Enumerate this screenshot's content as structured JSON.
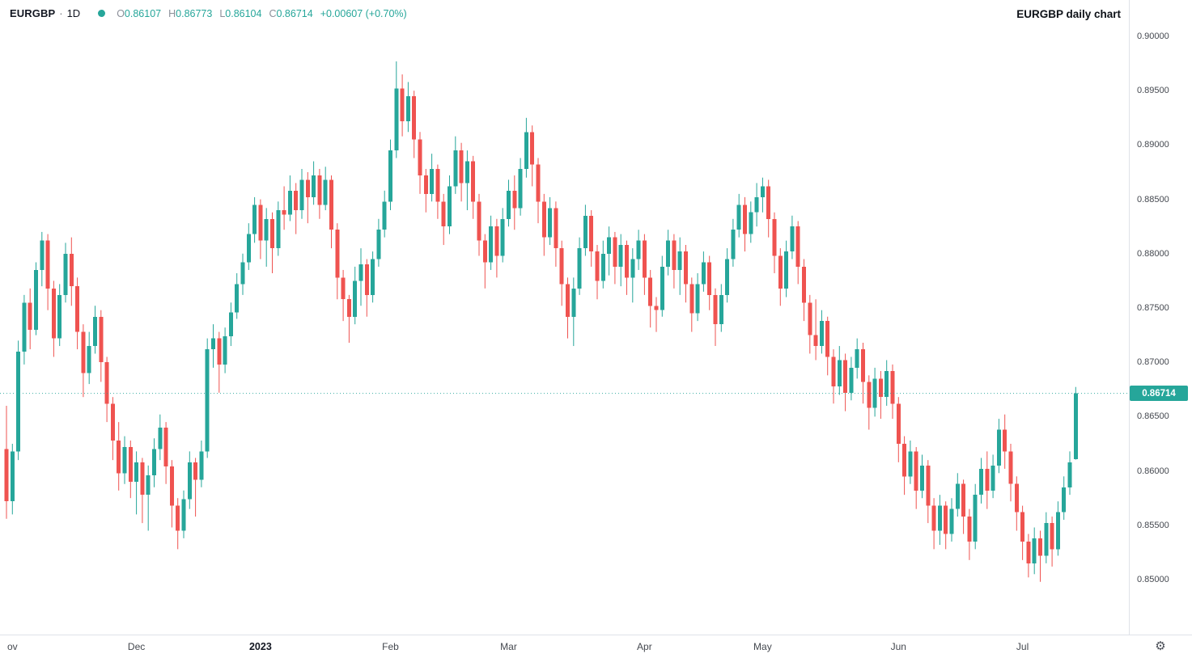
{
  "legend": {
    "symbol": "EURGBP",
    "separator": "·",
    "interval": "1D",
    "ohlc": {
      "open_label": "O",
      "open_value": "0.86107",
      "high_label": "H",
      "high_value": "0.86773",
      "low_label": "L",
      "low_value": "0.86104",
      "close_label": "C",
      "close_value": "0.86714",
      "change_value": "+0.00607 (+0.70%)"
    }
  },
  "annotation": {
    "title": "EURGBP daily chart"
  },
  "price_scale": {
    "labels": [
      "0.90000",
      "0.89500",
      "0.89000",
      "0.88500",
      "0.88000",
      "0.87500",
      "0.87000",
      "0.86500",
      "0.86000",
      "0.85500",
      "0.85000"
    ],
    "last_price": "0.86714"
  },
  "time_scale": {
    "ticks": [
      {
        "label": "ov",
        "index": 1
      },
      {
        "label": "Dec",
        "index": 22
      },
      {
        "label": "2023",
        "index": 43,
        "bold": true
      },
      {
        "label": "Feb",
        "index": 65
      },
      {
        "label": "Mar",
        "index": 85
      },
      {
        "label": "Apr",
        "index": 108
      },
      {
        "label": "May",
        "index": 128
      },
      {
        "label": "Jun",
        "index": 151
      },
      {
        "label": "Jul",
        "index": 172
      }
    ]
  },
  "colors": {
    "up": "#26a69a",
    "down": "#ef5350",
    "text": "#131722",
    "muted": "#787b86",
    "axis_line": "#dfe2e8",
    "badge_text": "#ffffff"
  },
  "icons": {
    "settings": "⚙"
  },
  "chart_data": {
    "type": "candlestick",
    "symbol": "EURGBP",
    "interval": "1D",
    "title": "EURGBP daily chart",
    "grid": false,
    "y_axis": {
      "min": 0.85,
      "max": 0.9,
      "tick_step": 0.005,
      "side": "right"
    },
    "x_axis": {
      "ticks": [
        "Nov",
        "Dec",
        "2023",
        "Feb",
        "Mar",
        "Apr",
        "May",
        "Jun",
        "Jul"
      ]
    },
    "last_price": 0.86714,
    "last_ohlc": {
      "open": 0.86107,
      "high": 0.86773,
      "low": 0.86104,
      "close": 0.86714,
      "change": 0.00607,
      "change_pct": 0.7
    },
    "candles": [
      [
        0.862,
        0.866,
        0.8556,
        0.8572
      ],
      [
        0.8572,
        0.8625,
        0.856,
        0.8618
      ],
      [
        0.8618,
        0.872,
        0.861,
        0.871
      ],
      [
        0.871,
        0.8762,
        0.8698,
        0.8755
      ],
      [
        0.8755,
        0.8768,
        0.8712,
        0.873
      ],
      [
        0.873,
        0.8792,
        0.8725,
        0.8785
      ],
      [
        0.8785,
        0.882,
        0.877,
        0.8812
      ],
      [
        0.8812,
        0.8818,
        0.8748,
        0.8768
      ],
      [
        0.8768,
        0.8775,
        0.8705,
        0.8722
      ],
      [
        0.8722,
        0.8772,
        0.8715,
        0.8762
      ],
      [
        0.8762,
        0.881,
        0.8755,
        0.88
      ],
      [
        0.88,
        0.8815,
        0.8752,
        0.877
      ],
      [
        0.877,
        0.8778,
        0.8712,
        0.8728
      ],
      [
        0.8728,
        0.8735,
        0.8668,
        0.869
      ],
      [
        0.869,
        0.8728,
        0.868,
        0.8715
      ],
      [
        0.8715,
        0.8752,
        0.8708,
        0.8742
      ],
      [
        0.8742,
        0.8748,
        0.8682,
        0.87
      ],
      [
        0.87,
        0.8705,
        0.8645,
        0.8662
      ],
      [
        0.8662,
        0.8668,
        0.861,
        0.8628
      ],
      [
        0.8628,
        0.8645,
        0.8582,
        0.8598
      ],
      [
        0.8598,
        0.8632,
        0.8588,
        0.8622
      ],
      [
        0.8622,
        0.8628,
        0.8575,
        0.859
      ],
      [
        0.859,
        0.8618,
        0.856,
        0.8608
      ],
      [
        0.8608,
        0.8612,
        0.8552,
        0.8578
      ],
      [
        0.8578,
        0.8605,
        0.8545,
        0.8596
      ],
      [
        0.8596,
        0.863,
        0.8585,
        0.862
      ],
      [
        0.862,
        0.8652,
        0.861,
        0.864
      ],
      [
        0.864,
        0.8645,
        0.8588,
        0.8604
      ],
      [
        0.8604,
        0.861,
        0.8548,
        0.8568
      ],
      [
        0.8568,
        0.8575,
        0.8528,
        0.8545
      ],
      [
        0.8545,
        0.8582,
        0.8538,
        0.8574
      ],
      [
        0.8574,
        0.8618,
        0.8565,
        0.8608
      ],
      [
        0.8608,
        0.8612,
        0.8558,
        0.8592
      ],
      [
        0.8592,
        0.8628,
        0.8585,
        0.8618
      ],
      [
        0.8618,
        0.8722,
        0.8612,
        0.8712
      ],
      [
        0.8712,
        0.8735,
        0.8695,
        0.8722
      ],
      [
        0.8722,
        0.8728,
        0.8672,
        0.8698
      ],
      [
        0.8698,
        0.8732,
        0.869,
        0.8724
      ],
      [
        0.8724,
        0.8755,
        0.8715,
        0.8746
      ],
      [
        0.8746,
        0.8782,
        0.874,
        0.8772
      ],
      [
        0.8772,
        0.88,
        0.8762,
        0.8792
      ],
      [
        0.8792,
        0.8828,
        0.8785,
        0.8818
      ],
      [
        0.8818,
        0.8852,
        0.881,
        0.8845
      ],
      [
        0.8845,
        0.885,
        0.8795,
        0.8812
      ],
      [
        0.8812,
        0.8842,
        0.8788,
        0.8832
      ],
      [
        0.8832,
        0.8838,
        0.8782,
        0.8805
      ],
      [
        0.8805,
        0.8848,
        0.8798,
        0.884
      ],
      [
        0.884,
        0.8862,
        0.8822,
        0.8836
      ],
      [
        0.8836,
        0.8872,
        0.883,
        0.8858
      ],
      [
        0.8858,
        0.8865,
        0.8818,
        0.884
      ],
      [
        0.884,
        0.8878,
        0.8832,
        0.8868
      ],
      [
        0.8868,
        0.8875,
        0.8828,
        0.8852
      ],
      [
        0.8852,
        0.8885,
        0.8845,
        0.8872
      ],
      [
        0.8872,
        0.8878,
        0.8832,
        0.8845
      ],
      [
        0.8845,
        0.888,
        0.884,
        0.8868
      ],
      [
        0.8868,
        0.8872,
        0.8805,
        0.8822
      ],
      [
        0.8822,
        0.8828,
        0.8758,
        0.8778
      ],
      [
        0.8778,
        0.8785,
        0.8738,
        0.8758
      ],
      [
        0.8758,
        0.8762,
        0.8718,
        0.8742
      ],
      [
        0.8742,
        0.8788,
        0.8735,
        0.8775
      ],
      [
        0.8775,
        0.8805,
        0.8752,
        0.879
      ],
      [
        0.879,
        0.8795,
        0.8742,
        0.8762
      ],
      [
        0.8762,
        0.8802,
        0.8755,
        0.8795
      ],
      [
        0.8795,
        0.8832,
        0.8788,
        0.8822
      ],
      [
        0.8822,
        0.8858,
        0.8815,
        0.8848
      ],
      [
        0.8848,
        0.8905,
        0.884,
        0.8895
      ],
      [
        0.8895,
        0.8977,
        0.8888,
        0.8952
      ],
      [
        0.8952,
        0.8965,
        0.8908,
        0.8922
      ],
      [
        0.8922,
        0.8958,
        0.8912,
        0.8945
      ],
      [
        0.8945,
        0.895,
        0.8888,
        0.8905
      ],
      [
        0.8905,
        0.8912,
        0.8855,
        0.8872
      ],
      [
        0.8872,
        0.8878,
        0.8838,
        0.8855
      ],
      [
        0.8855,
        0.8892,
        0.8848,
        0.8878
      ],
      [
        0.8878,
        0.8882,
        0.8832,
        0.8848
      ],
      [
        0.8848,
        0.8855,
        0.8808,
        0.8825
      ],
      [
        0.8825,
        0.8872,
        0.8818,
        0.8862
      ],
      [
        0.8862,
        0.8908,
        0.8855,
        0.8895
      ],
      [
        0.8895,
        0.8902,
        0.8848,
        0.8865
      ],
      [
        0.8865,
        0.8895,
        0.884,
        0.8885
      ],
      [
        0.8885,
        0.889,
        0.8832,
        0.8848
      ],
      [
        0.8848,
        0.8855,
        0.8798,
        0.8812
      ],
      [
        0.8812,
        0.8818,
        0.8768,
        0.8792
      ],
      [
        0.8792,
        0.8835,
        0.8785,
        0.8825
      ],
      [
        0.8825,
        0.8832,
        0.8778,
        0.8798
      ],
      [
        0.8798,
        0.8842,
        0.8792,
        0.8832
      ],
      [
        0.8832,
        0.8868,
        0.8825,
        0.8858
      ],
      [
        0.8858,
        0.8872,
        0.8822,
        0.8842
      ],
      [
        0.8842,
        0.8888,
        0.8835,
        0.8878
      ],
      [
        0.8878,
        0.8925,
        0.887,
        0.8912
      ],
      [
        0.8912,
        0.8918,
        0.8862,
        0.8882
      ],
      [
        0.8882,
        0.8888,
        0.8828,
        0.8848
      ],
      [
        0.8848,
        0.8855,
        0.8798,
        0.8815
      ],
      [
        0.8815,
        0.8852,
        0.8808,
        0.8842
      ],
      [
        0.8842,
        0.8848,
        0.8788,
        0.8805
      ],
      [
        0.8805,
        0.8812,
        0.8752,
        0.8772
      ],
      [
        0.8772,
        0.8778,
        0.8722,
        0.8742
      ],
      [
        0.8742,
        0.8778,
        0.8715,
        0.8768
      ],
      [
        0.8768,
        0.8815,
        0.8762,
        0.8805
      ],
      [
        0.8805,
        0.8845,
        0.8798,
        0.8835
      ],
      [
        0.8835,
        0.884,
        0.8788,
        0.8802
      ],
      [
        0.8802,
        0.8808,
        0.8758,
        0.8775
      ],
      [
        0.8775,
        0.8812,
        0.8768,
        0.88
      ],
      [
        0.88,
        0.8825,
        0.878,
        0.8815
      ],
      [
        0.8815,
        0.882,
        0.8772,
        0.8788
      ],
      [
        0.8788,
        0.8818,
        0.877,
        0.8808
      ],
      [
        0.8808,
        0.8812,
        0.8762,
        0.8778
      ],
      [
        0.8778,
        0.8805,
        0.8755,
        0.8795
      ],
      [
        0.8795,
        0.8822,
        0.8785,
        0.8812
      ],
      [
        0.8812,
        0.8818,
        0.8762,
        0.8778
      ],
      [
        0.8778,
        0.8785,
        0.8732,
        0.8752
      ],
      [
        0.8752,
        0.876,
        0.8728,
        0.8748
      ],
      [
        0.8748,
        0.8798,
        0.8742,
        0.8788
      ],
      [
        0.8788,
        0.8822,
        0.878,
        0.8812
      ],
      [
        0.8812,
        0.8818,
        0.8768,
        0.8785
      ],
      [
        0.8785,
        0.8815,
        0.8762,
        0.8802
      ],
      [
        0.8802,
        0.8808,
        0.8755,
        0.8772
      ],
      [
        0.8772,
        0.8778,
        0.8728,
        0.8745
      ],
      [
        0.8745,
        0.8782,
        0.8738,
        0.8772
      ],
      [
        0.8772,
        0.8802,
        0.8765,
        0.8792
      ],
      [
        0.8792,
        0.8798,
        0.8748,
        0.8762
      ],
      [
        0.8762,
        0.8768,
        0.8715,
        0.8735
      ],
      [
        0.8735,
        0.8772,
        0.8728,
        0.8762
      ],
      [
        0.8762,
        0.8805,
        0.8755,
        0.8795
      ],
      [
        0.8795,
        0.8832,
        0.8788,
        0.8822
      ],
      [
        0.8822,
        0.8855,
        0.8815,
        0.8845
      ],
      [
        0.8845,
        0.8852,
        0.8802,
        0.8818
      ],
      [
        0.8818,
        0.8848,
        0.881,
        0.8838
      ],
      [
        0.8838,
        0.8865,
        0.8825,
        0.8852
      ],
      [
        0.8852,
        0.887,
        0.8838,
        0.8862
      ],
      [
        0.8862,
        0.8868,
        0.8815,
        0.8832
      ],
      [
        0.8832,
        0.8838,
        0.8782,
        0.8798
      ],
      [
        0.8798,
        0.8805,
        0.8752,
        0.8768
      ],
      [
        0.8768,
        0.8812,
        0.876,
        0.8802
      ],
      [
        0.8802,
        0.8835,
        0.8795,
        0.8825
      ],
      [
        0.8825,
        0.883,
        0.8772,
        0.8788
      ],
      [
        0.8788,
        0.8795,
        0.8738,
        0.8755
      ],
      [
        0.8755,
        0.8762,
        0.8708,
        0.8725
      ],
      [
        0.8725,
        0.8758,
        0.8702,
        0.8715
      ],
      [
        0.8715,
        0.8748,
        0.8708,
        0.8738
      ],
      [
        0.8738,
        0.8742,
        0.8688,
        0.8705
      ],
      [
        0.8705,
        0.8712,
        0.8662,
        0.8678
      ],
      [
        0.8678,
        0.8715,
        0.867,
        0.8702
      ],
      [
        0.8702,
        0.8708,
        0.8655,
        0.8672
      ],
      [
        0.8672,
        0.8705,
        0.8665,
        0.8695
      ],
      [
        0.8695,
        0.8722,
        0.8685,
        0.8712
      ],
      [
        0.8712,
        0.8718,
        0.8662,
        0.8682
      ],
      [
        0.8682,
        0.8688,
        0.8638,
        0.8658
      ],
      [
        0.8658,
        0.8695,
        0.865,
        0.8685
      ],
      [
        0.8685,
        0.8692,
        0.8648,
        0.8668
      ],
      [
        0.8668,
        0.8702,
        0.866,
        0.8692
      ],
      [
        0.8692,
        0.8698,
        0.8648,
        0.8662
      ],
      [
        0.8662,
        0.8668,
        0.8608,
        0.8625
      ],
      [
        0.8625,
        0.8632,
        0.8578,
        0.8595
      ],
      [
        0.8595,
        0.8628,
        0.8588,
        0.8618
      ],
      [
        0.8618,
        0.8622,
        0.8565,
        0.8582
      ],
      [
        0.8582,
        0.8615,
        0.8575,
        0.8605
      ],
      [
        0.8605,
        0.861,
        0.8552,
        0.8568
      ],
      [
        0.8568,
        0.8575,
        0.8528,
        0.8545
      ],
      [
        0.8545,
        0.8578,
        0.8532,
        0.8568
      ],
      [
        0.8568,
        0.8572,
        0.8528,
        0.8542
      ],
      [
        0.8542,
        0.8575,
        0.8535,
        0.8565
      ],
      [
        0.8565,
        0.8598,
        0.8558,
        0.8588
      ],
      [
        0.8588,
        0.8592,
        0.8542,
        0.8558
      ],
      [
        0.8558,
        0.8565,
        0.8518,
        0.8535
      ],
      [
        0.8535,
        0.8588,
        0.8528,
        0.8578
      ],
      [
        0.8578,
        0.8612,
        0.857,
        0.8602
      ],
      [
        0.8602,
        0.8618,
        0.8565,
        0.8582
      ],
      [
        0.8582,
        0.8615,
        0.8575,
        0.8605
      ],
      [
        0.8605,
        0.8648,
        0.8598,
        0.8638
      ],
      [
        0.8638,
        0.8652,
        0.8602,
        0.8618
      ],
      [
        0.8618,
        0.8625,
        0.8572,
        0.8588
      ],
      [
        0.8588,
        0.8595,
        0.8545,
        0.8562
      ],
      [
        0.8562,
        0.8568,
        0.8518,
        0.8535
      ],
      [
        0.8535,
        0.8542,
        0.8502,
        0.8515
      ],
      [
        0.8515,
        0.8548,
        0.8505,
        0.8538
      ],
      [
        0.8538,
        0.8545,
        0.8498,
        0.8522
      ],
      [
        0.8522,
        0.8562,
        0.8515,
        0.8552
      ],
      [
        0.8552,
        0.8558,
        0.8512,
        0.8528
      ],
      [
        0.8528,
        0.8572,
        0.8522,
        0.8562
      ],
      [
        0.8562,
        0.8595,
        0.8555,
        0.8585
      ],
      [
        0.8585,
        0.8618,
        0.8578,
        0.8608
      ],
      [
        0.86107,
        0.86773,
        0.86104,
        0.86714
      ]
    ]
  }
}
